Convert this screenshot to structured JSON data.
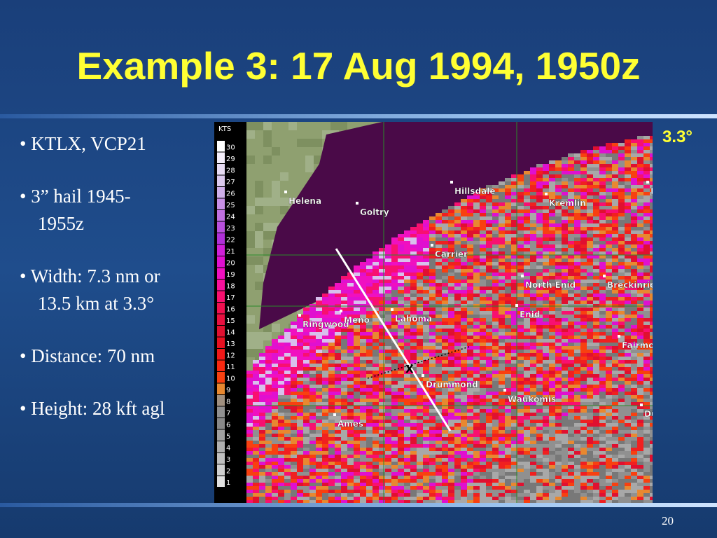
{
  "title": "Example 3:  17 Aug 1994, 1950z",
  "bullets": [
    {
      "lines": [
        "• KTLX, VCP21"
      ]
    },
    {
      "lines": [
        "• 3” hail 1945-",
        "1955z"
      ]
    },
    {
      "lines": [
        "• Width: 7.3 nm or",
        "13.5 km at 3.3°"
      ]
    },
    {
      "lines": [
        "• Distance: 70 nm"
      ]
    },
    {
      "lines": [
        "• Height: 28 kft agl"
      ]
    }
  ],
  "radar": {
    "elevation": "3.3°",
    "scale": {
      "unit": "KTS",
      "labels": [
        30,
        29,
        28,
        27,
        26,
        25,
        24,
        23,
        22,
        21,
        20,
        19,
        18,
        17,
        16,
        15,
        14,
        13,
        12,
        11,
        10,
        9,
        8,
        7,
        6,
        5,
        4,
        3,
        2,
        1
      ],
      "colors": [
        "#ffffff",
        "#f4eefa",
        "#e8dcf4",
        "#dccaee",
        "#d0b0ea",
        "#c890e6",
        "#c070e0",
        "#b850dc",
        "#b030d8",
        "#d020d8",
        "#e010d0",
        "#f010c0",
        "#f8109c",
        "#f81070",
        "#f01050",
        "#e81040",
        "#e01030",
        "#e81020",
        "#f01818",
        "#f82810",
        "#f84010",
        "#e88830",
        "#a09080",
        "#909090",
        "#888888",
        "#a0a0a0",
        "#b0b0b0",
        "#c0c0c0",
        "#d0d0d0",
        "#e0e0e0"
      ]
    },
    "towns": [
      "Helena",
      "Goltry",
      "Hillsdale",
      "Kremlin",
      "H",
      "Carrier",
      "North Enid",
      "Breckinric",
      "Enid",
      "Ringwood",
      "Meno",
      "Lahoma",
      "Fairmo",
      "Drummond",
      "Waukomis",
      "Ames",
      "Du"
    ],
    "marker": "X"
  },
  "page_number": "20"
}
